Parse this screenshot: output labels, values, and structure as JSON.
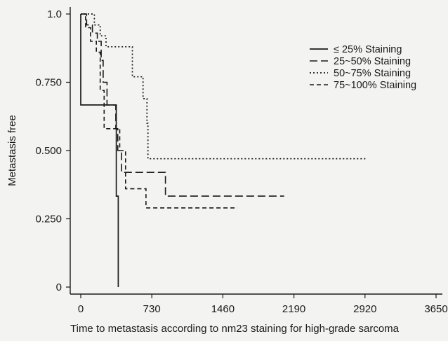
{
  "chart_data": {
    "type": "line",
    "title": "",
    "xlabel": "Time to metastasis according to nm23 staining for high-grade sarcoma",
    "ylabel": "Metastasis free",
    "xlim": [
      -60,
      3700
    ],
    "ylim": [
      -0.03,
      1.03
    ],
    "x_ticks": [
      0,
      730,
      1460,
      2190,
      2920,
      3650
    ],
    "x_tick_labels": [
      "0",
      "730",
      "1460",
      "2190",
      "2920",
      "3650"
    ],
    "y_ticks": [
      0,
      0.25,
      0.5,
      0.75,
      1.0
    ],
    "y_tick_labels": [
      "0",
      "0.250",
      "0.500",
      "0.750",
      "1.0"
    ],
    "grid": false,
    "legend_position": "top-right",
    "series": [
      {
        "name": "≤ 25% Staining",
        "line_style": "solid",
        "points": [
          [
            0,
            1.0
          ],
          [
            0,
            0.667
          ],
          [
            365,
            0.667
          ],
          [
            365,
            0.333
          ],
          [
            385,
            0.333
          ],
          [
            385,
            0.0
          ]
        ]
      },
      {
        "name": "25~50% Staining",
        "line_style": "dashed",
        "points": [
          [
            0,
            1.0
          ],
          [
            60,
            1.0
          ],
          [
            60,
            0.96
          ],
          [
            120,
            0.96
          ],
          [
            120,
            0.93
          ],
          [
            170,
            0.93
          ],
          [
            170,
            0.9
          ],
          [
            210,
            0.9
          ],
          [
            210,
            0.83
          ],
          [
            230,
            0.83
          ],
          [
            230,
            0.75
          ],
          [
            270,
            0.75
          ],
          [
            270,
            0.667
          ],
          [
            360,
            0.667
          ],
          [
            360,
            0.58
          ],
          [
            380,
            0.58
          ],
          [
            380,
            0.5
          ],
          [
            420,
            0.5
          ],
          [
            420,
            0.42
          ],
          [
            870,
            0.42
          ],
          [
            870,
            0.333
          ],
          [
            2090,
            0.333
          ]
        ]
      },
      {
        "name": "50~75% Staining",
        "line_style": "dotted",
        "points": [
          [
            0,
            1.0
          ],
          [
            140,
            1.0
          ],
          [
            140,
            0.96
          ],
          [
            200,
            0.96
          ],
          [
            200,
            0.92
          ],
          [
            260,
            0.92
          ],
          [
            260,
            0.88
          ],
          [
            530,
            0.88
          ],
          [
            530,
            0.77
          ],
          [
            640,
            0.77
          ],
          [
            640,
            0.69
          ],
          [
            680,
            0.69
          ],
          [
            680,
            0.6
          ],
          [
            690,
            0.6
          ],
          [
            690,
            0.47
          ],
          [
            2940,
            0.47
          ]
        ]
      },
      {
        "name": "75~100% Staining",
        "line_style": "dashed-short",
        "points": [
          [
            0,
            1.0
          ],
          [
            50,
            1.0
          ],
          [
            50,
            0.95
          ],
          [
            100,
            0.95
          ],
          [
            100,
            0.9
          ],
          [
            160,
            0.9
          ],
          [
            160,
            0.86
          ],
          [
            200,
            0.86
          ],
          [
            200,
            0.72
          ],
          [
            240,
            0.72
          ],
          [
            240,
            0.58
          ],
          [
            400,
            0.58
          ],
          [
            400,
            0.5
          ],
          [
            460,
            0.5
          ],
          [
            460,
            0.36
          ],
          [
            670,
            0.36
          ],
          [
            670,
            0.29
          ],
          [
            1610,
            0.29
          ]
        ]
      }
    ]
  }
}
